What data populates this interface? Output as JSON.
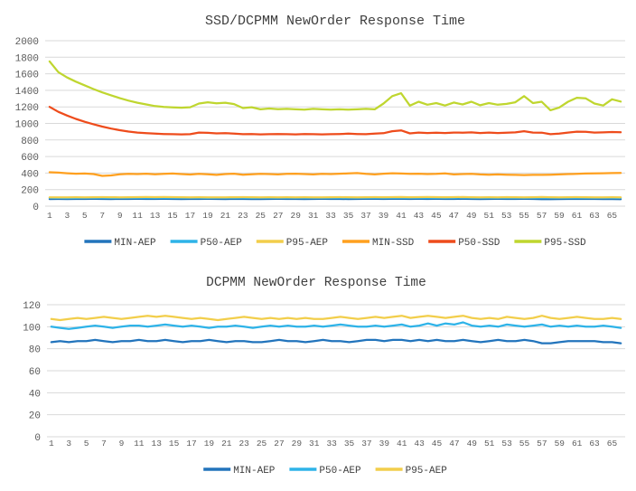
{
  "style": {
    "background": "#FFFFFF",
    "title_color": "#3F3F3F",
    "tick_color": "#595959",
    "legend_text_color": "#404040",
    "gridline_color": "#D9D9D9"
  },
  "chart_data": [
    {
      "type": "line",
      "title": "SSD/DCPMM  NewOrder Response Time",
      "xlabel": "",
      "ylabel": "",
      "grid": true,
      "legend_position": "bottom",
      "ylim": [
        0,
        2000
      ],
      "y_tick_step": 200,
      "x_label_interval": 2,
      "x": [
        1,
        2,
        3,
        4,
        5,
        6,
        7,
        8,
        9,
        10,
        11,
        12,
        13,
        14,
        15,
        16,
        17,
        18,
        19,
        20,
        21,
        22,
        23,
        24,
        25,
        26,
        27,
        28,
        29,
        30,
        31,
        32,
        33,
        34,
        35,
        36,
        37,
        38,
        39,
        40,
        41,
        42,
        43,
        44,
        45,
        46,
        47,
        48,
        49,
        50,
        51,
        52,
        53,
        54,
        55,
        56,
        57,
        58,
        59,
        60,
        61,
        62,
        63,
        64,
        65,
        66
      ],
      "series": [
        {
          "name": "MIN-AEP",
          "color": "#2274BC",
          "values": [
            86,
            87,
            86,
            87,
            87,
            88,
            87,
            86,
            87,
            87,
            88,
            87,
            87,
            88,
            87,
            86,
            87,
            87,
            88,
            87,
            86,
            87,
            87,
            86,
            86,
            87,
            88,
            87,
            87,
            86,
            87,
            88,
            87,
            87,
            86,
            87,
            88,
            88,
            87,
            88,
            88,
            87,
            88,
            87,
            88,
            87,
            87,
            88,
            87,
            86,
            87,
            88,
            87,
            87,
            88,
            87,
            85,
            85,
            86,
            87,
            87,
            87,
            87,
            86,
            86,
            85
          ]
        },
        {
          "name": "P50-AEP",
          "color": "#2EB3E8",
          "values": [
            100,
            99,
            98,
            99,
            100,
            101,
            100,
            99,
            100,
            101,
            101,
            100,
            101,
            102,
            101,
            100,
            101,
            100,
            99,
            100,
            100,
            101,
            100,
            99,
            100,
            101,
            100,
            101,
            100,
            100,
            101,
            100,
            101,
            102,
            101,
            100,
            100,
            101,
            100,
            101,
            102,
            100,
            101,
            103,
            101,
            103,
            102,
            104,
            101,
            100,
            101,
            100,
            102,
            101,
            100,
            101,
            102,
            100,
            101,
            100,
            101,
            100,
            100,
            101,
            100,
            99
          ]
        },
        {
          "name": "P95-AEP",
          "color": "#F2CE4B",
          "values": [
            107,
            106,
            107,
            108,
            107,
            108,
            109,
            108,
            107,
            108,
            109,
            110,
            109,
            110,
            109,
            108,
            107,
            108,
            107,
            106,
            107,
            108,
            109,
            108,
            107,
            108,
            107,
            108,
            107,
            108,
            107,
            107,
            108,
            109,
            108,
            107,
            108,
            109,
            108,
            109,
            110,
            108,
            109,
            110,
            109,
            108,
            109,
            110,
            108,
            107,
            108,
            107,
            109,
            108,
            107,
            108,
            110,
            108,
            107,
            108,
            109,
            108,
            107,
            107,
            108,
            107
          ]
        },
        {
          "name": "MIN-SSD",
          "color": "#FFA01F",
          "values": [
            410,
            405,
            398,
            392,
            394,
            388,
            366,
            372,
            385,
            390,
            388,
            392,
            385,
            390,
            395,
            388,
            382,
            390,
            385,
            378,
            388,
            392,
            380,
            385,
            390,
            388,
            384,
            390,
            392,
            388,
            384,
            390,
            388,
            392,
            396,
            400,
            390,
            384,
            392,
            398,
            395,
            390,
            392,
            388,
            390,
            396,
            384,
            388,
            390,
            384,
            380,
            384,
            380,
            378,
            376,
            378,
            378,
            380,
            384,
            388,
            390,
            394,
            396,
            398,
            400,
            402
          ]
        },
        {
          "name": "P50-SSD",
          "color": "#EE4C1C",
          "values": [
            1200,
            1140,
            1095,
            1055,
            1020,
            990,
            962,
            938,
            918,
            902,
            890,
            882,
            876,
            872,
            870,
            868,
            870,
            890,
            886,
            880,
            882,
            878,
            870,
            872,
            868,
            870,
            872,
            870,
            868,
            872,
            870,
            868,
            870,
            872,
            876,
            872,
            870,
            876,
            882,
            906,
            916,
            880,
            890,
            884,
            888,
            884,
            890,
            888,
            892,
            884,
            890,
            884,
            888,
            892,
            906,
            890,
            888,
            870,
            876,
            890,
            900,
            898,
            890,
            892,
            896,
            894
          ]
        },
        {
          "name": "P95-SSD",
          "color": "#BFD62F",
          "values": [
            1750,
            1620,
            1555,
            1505,
            1460,
            1415,
            1375,
            1340,
            1305,
            1275,
            1250,
            1230,
            1210,
            1200,
            1195,
            1190,
            1196,
            1240,
            1256,
            1244,
            1250,
            1234,
            1186,
            1196,
            1170,
            1180,
            1172,
            1176,
            1170,
            1166,
            1176,
            1170,
            1166,
            1170,
            1166,
            1170,
            1176,
            1170,
            1240,
            1330,
            1365,
            1215,
            1262,
            1226,
            1246,
            1216,
            1252,
            1230,
            1262,
            1220,
            1246,
            1226,
            1236,
            1256,
            1330,
            1246,
            1262,
            1160,
            1192,
            1262,
            1310,
            1304,
            1240,
            1216,
            1292,
            1264
          ]
        }
      ]
    },
    {
      "type": "line",
      "title": "DCPMM NewOrder Response Time",
      "xlabel": "",
      "ylabel": "",
      "grid": true,
      "legend_position": "bottom",
      "ylim": [
        0,
        120
      ],
      "y_tick_step": 20,
      "x_label_interval": 2,
      "x": [
        1,
        2,
        3,
        4,
        5,
        6,
        7,
        8,
        9,
        10,
        11,
        12,
        13,
        14,
        15,
        16,
        17,
        18,
        19,
        20,
        21,
        22,
        23,
        24,
        25,
        26,
        27,
        28,
        29,
        30,
        31,
        32,
        33,
        34,
        35,
        36,
        37,
        38,
        39,
        40,
        41,
        42,
        43,
        44,
        45,
        46,
        47,
        48,
        49,
        50,
        51,
        52,
        53,
        54,
        55,
        56,
        57,
        58,
        59,
        60,
        61,
        62,
        63,
        64,
        65,
        66
      ],
      "series": [
        {
          "name": "MIN-AEP",
          "color": "#2274BC",
          "values": [
            86,
            87,
            86,
            87,
            87,
            88,
            87,
            86,
            87,
            87,
            88,
            87,
            87,
            88,
            87,
            86,
            87,
            87,
            88,
            87,
            86,
            87,
            87,
            86,
            86,
            87,
            88,
            87,
            87,
            86,
            87,
            88,
            87,
            87,
            86,
            87,
            88,
            88,
            87,
            88,
            88,
            87,
            88,
            87,
            88,
            87,
            87,
            88,
            87,
            86,
            87,
            88,
            87,
            87,
            88,
            87,
            85,
            85,
            86,
            87,
            87,
            87,
            87,
            86,
            86,
            85
          ]
        },
        {
          "name": "P50-AEP",
          "color": "#2EB3E8",
          "values": [
            100,
            99,
            98,
            99,
            100,
            101,
            100,
            99,
            100,
            101,
            101,
            100,
            101,
            102,
            101,
            100,
            101,
            100,
            99,
            100,
            100,
            101,
            100,
            99,
            100,
            101,
            100,
            101,
            100,
            100,
            101,
            100,
            101,
            102,
            101,
            100,
            100,
            101,
            100,
            101,
            102,
            100,
            101,
            103,
            101,
            103,
            102,
            104,
            101,
            100,
            101,
            100,
            102,
            101,
            100,
            101,
            102,
            100,
            101,
            100,
            101,
            100,
            100,
            101,
            100,
            99
          ]
        },
        {
          "name": "P95-AEP",
          "color": "#F2CE4B",
          "values": [
            107,
            106,
            107,
            108,
            107,
            108,
            109,
            108,
            107,
            108,
            109,
            110,
            109,
            110,
            109,
            108,
            107,
            108,
            107,
            106,
            107,
            108,
            109,
            108,
            107,
            108,
            107,
            108,
            107,
            108,
            107,
            107,
            108,
            109,
            108,
            107,
            108,
            109,
            108,
            109,
            110,
            108,
            109,
            110,
            109,
            108,
            109,
            110,
            108,
            107,
            108,
            107,
            109,
            108,
            107,
            108,
            110,
            108,
            107,
            108,
            109,
            108,
            107,
            107,
            108,
            107
          ]
        }
      ]
    }
  ]
}
